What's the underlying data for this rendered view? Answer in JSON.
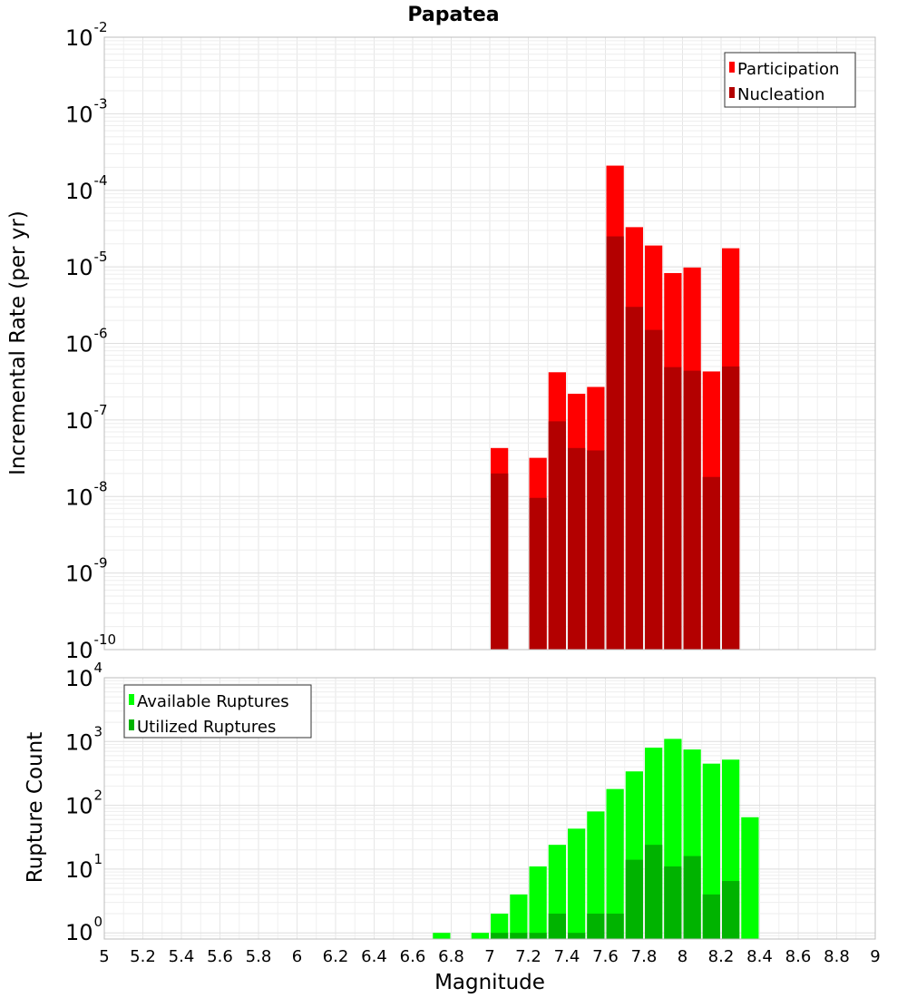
{
  "chart_data": [
    {
      "type": "bar",
      "title": "Papatea",
      "xlabel": "",
      "ylabel": "Incremental Rate (per yr)",
      "yscale": "log",
      "ylim": [
        1e-10,
        0.01
      ],
      "xlim": [
        5,
        9
      ],
      "bin_width": 0.1,
      "grid": true,
      "legend_position": "top-right",
      "x": [
        7.05,
        7.25,
        7.35,
        7.45,
        7.55,
        7.65,
        7.75,
        7.85,
        7.95,
        8.05,
        8.15,
        8.25
      ],
      "series": [
        {
          "name": "Participation",
          "color": "#ff0000",
          "values": [
            4.3e-08,
            3.2e-08,
            4.2e-07,
            2.2e-07,
            2.7e-07,
            0.00021,
            3.3e-05,
            1.9e-05,
            8.3e-06,
            9.8e-06,
            4.3e-07,
            1.75e-05
          ]
        },
        {
          "name": "Nucleation",
          "color": "#b30000",
          "values": [
            2e-08,
            9.6e-09,
            9.6e-08,
            4.3e-08,
            4e-08,
            2.5e-05,
            3e-06,
            1.5e-06,
            4.9e-07,
            4.4e-07,
            1.8e-08,
            5e-07
          ]
        }
      ]
    },
    {
      "type": "bar",
      "title": "",
      "xlabel": "Magnitude",
      "ylabel": "Rupture Count",
      "yscale": "log",
      "ylim": [
        0.8,
        10000
      ],
      "xlim": [
        5,
        9
      ],
      "bin_width": 0.1,
      "grid": true,
      "legend_position": "top-left",
      "x_ticks": [
        "5",
        "5.2",
        "5.4",
        "5.6",
        "5.8",
        "6",
        "6.2",
        "6.4",
        "6.6",
        "6.8",
        "7",
        "7.2",
        "7.4",
        "7.6",
        "7.8",
        "8",
        "8.2",
        "8.4",
        "8.6",
        "8.8",
        "9"
      ],
      "x": [
        6.75,
        6.95,
        7.05,
        7.15,
        7.25,
        7.35,
        7.45,
        7.55,
        7.65,
        7.75,
        7.85,
        7.95,
        8.05,
        8.15,
        8.25,
        8.35
      ],
      "series": [
        {
          "name": "Available Ruptures",
          "color": "#00ff00",
          "values": [
            1,
            1,
            2,
            4,
            11,
            24,
            43,
            80,
            180,
            340,
            800,
            1100,
            750,
            450,
            520,
            65
          ]
        },
        {
          "name": "Utilized Ruptures",
          "color": "#00b300",
          "values": [
            0,
            0,
            1,
            1,
            1,
            2,
            1,
            2,
            2,
            14,
            24,
            11,
            16,
            4,
            6.5,
            0
          ]
        }
      ]
    }
  ],
  "y_tick_base": "10",
  "top_y_ticks": [
    "-10",
    "-9",
    "-8",
    "-7",
    "-6",
    "-5",
    "-4",
    "-3",
    "-2"
  ],
  "bottom_y_ticks": [
    "0",
    "1",
    "2",
    "3",
    "4"
  ]
}
